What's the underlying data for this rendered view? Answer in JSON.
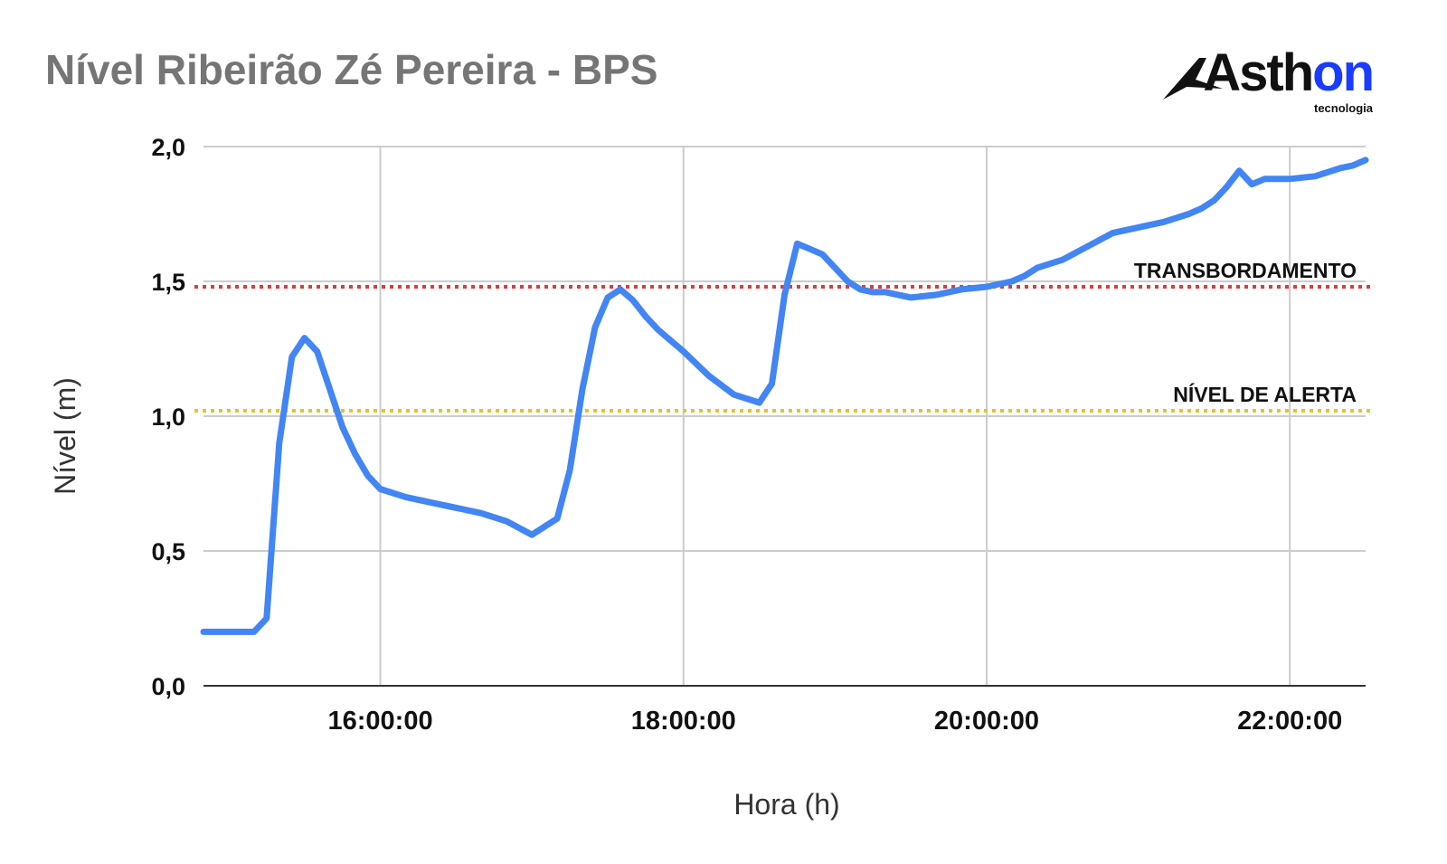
{
  "chart_data": {
    "type": "line",
    "title": "Nível Ribeirão Zé Pereira - BPS",
    "xlabel": "Hora (h)",
    "ylabel": "Nível (m)",
    "ylim": [
      0,
      2
    ],
    "xlim": [
      "14:50:00",
      "22:30:00"
    ],
    "y_ticks": [
      "0,0",
      "0,5",
      "1,0",
      "1,5",
      "2,0"
    ],
    "x_ticks": [
      "16:00:00",
      "18:00:00",
      "20:00:00",
      "22:00:00"
    ],
    "grid": true,
    "series": [
      {
        "color": "#4285f4",
        "x": [
          "14:50",
          "15:00",
          "15:10",
          "15:15",
          "15:20",
          "15:25",
          "15:30",
          "15:35",
          "15:40",
          "15:45",
          "15:50",
          "15:55",
          "16:00",
          "16:10",
          "16:20",
          "16:30",
          "16:40",
          "16:50",
          "17:00",
          "17:10",
          "17:15",
          "17:20",
          "17:25",
          "17:30",
          "17:35",
          "17:40",
          "17:45",
          "17:50",
          "18:00",
          "18:10",
          "18:20",
          "18:30",
          "18:35",
          "18:40",
          "18:45",
          "18:50",
          "18:55",
          "19:00",
          "19:05",
          "19:10",
          "19:15",
          "19:20",
          "19:30",
          "19:40",
          "19:50",
          "20:00",
          "20:05",
          "20:10",
          "20:15",
          "20:20",
          "20:30",
          "20:40",
          "20:50",
          "21:00",
          "21:10",
          "21:20",
          "21:25",
          "21:30",
          "21:35",
          "21:40",
          "21:45",
          "21:50",
          "22:00",
          "22:10",
          "22:20",
          "22:25",
          "22:30"
        ],
        "y": [
          0.2,
          0.2,
          0.2,
          0.25,
          0.9,
          1.22,
          1.29,
          1.24,
          1.1,
          0.96,
          0.86,
          0.78,
          0.73,
          0.7,
          0.68,
          0.66,
          0.64,
          0.61,
          0.56,
          0.62,
          0.8,
          1.1,
          1.33,
          1.44,
          1.47,
          1.43,
          1.37,
          1.32,
          1.24,
          1.15,
          1.08,
          1.05,
          1.12,
          1.45,
          1.64,
          1.62,
          1.6,
          1.55,
          1.5,
          1.47,
          1.46,
          1.46,
          1.44,
          1.45,
          1.47,
          1.48,
          1.49,
          1.5,
          1.52,
          1.55,
          1.58,
          1.63,
          1.68,
          1.7,
          1.72,
          1.75,
          1.77,
          1.8,
          1.85,
          1.91,
          1.86,
          1.88,
          1.88,
          1.89,
          1.92,
          1.93,
          1.95
        ]
      }
    ],
    "reference_lines": [
      {
        "label": "TRANSBORDAMENTO",
        "y": 1.48,
        "color": "#e53935",
        "style": "dotted"
      },
      {
        "label": "NÍVEL DE ALERTA",
        "y": 1.02,
        "color": "#e6c229",
        "style": "dotted"
      }
    ]
  },
  "logo": {
    "text_main": "Asth",
    "text_accent": "on",
    "subtitle": "tecnologia"
  }
}
